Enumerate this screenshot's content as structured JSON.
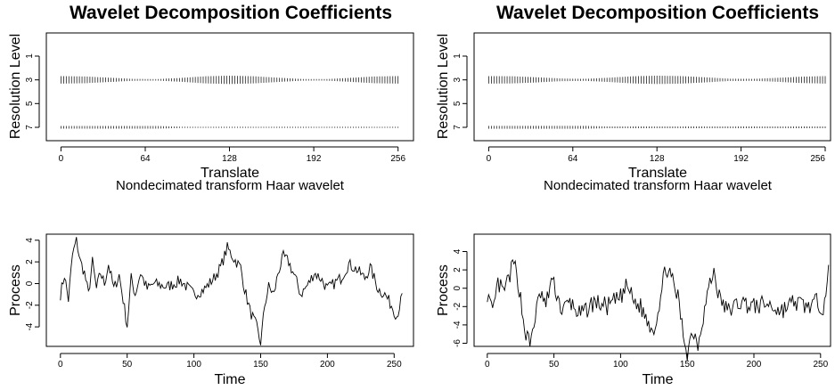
{
  "chart_data": [
    {
      "type": "wavelet-coefficients",
      "title": "Wavelet Decomposition Coefficients",
      "xlabel": "Translate",
      "ylabel": "Resolution Level",
      "subtitle": "Nondecimated transform Haar wavelet",
      "xticks": [
        "0",
        "64",
        "128",
        "192",
        "256"
      ],
      "yticks": [
        "1",
        "3",
        "5",
        "7"
      ],
      "xlim": [
        0,
        256
      ],
      "ylim": [
        8,
        0
      ],
      "levels": [
        {
          "level": 3,
          "amplitude_profile": [
            0.85,
            0.75,
            0.45,
            0.15,
            0.1,
            0.4,
            0.8,
            0.95,
            0.8,
            0.45,
            0.12,
            0.1,
            0.4,
            0.75,
            0.85
          ]
        },
        {
          "level": 7,
          "amplitude_profile": [
            0.5,
            0.5,
            0.5,
            0.5,
            0.5,
            0.12,
            0.12,
            0.12,
            0.12,
            0.12,
            0.12,
            0.12,
            0.12,
            0.12,
            0.12
          ]
        }
      ]
    },
    {
      "type": "wavelet-coefficients",
      "title": "Wavelet Decomposition Coefficients",
      "xlabel": "Translate",
      "ylabel": "Resolution Level",
      "subtitle": "Nondecimated transform Haar wavelet",
      "xticks": [
        "0",
        "64",
        "128",
        "192",
        "256"
      ],
      "yticks": [
        "1",
        "3",
        "5",
        "7"
      ],
      "xlim": [
        0,
        256
      ],
      "ylim": [
        8,
        0
      ],
      "levels": [
        {
          "level": 3,
          "amplitude_profile": [
            0.85,
            0.8,
            0.55,
            0.25,
            0.15,
            0.45,
            0.8,
            0.95,
            0.85,
            0.55,
            0.2,
            0.15,
            0.4,
            0.7,
            0.85
          ]
        },
        {
          "level": 7,
          "amplitude_profile": [
            0.55,
            0.55,
            0.55,
            0.55,
            0.55,
            0.25,
            0.25,
            0.25,
            0.25,
            0.25,
            0.25,
            0.25,
            0.25,
            0.25,
            0.25
          ]
        }
      ]
    },
    {
      "type": "line",
      "xlabel": "Time",
      "ylabel": "Process",
      "xticks": [
        "0",
        "50",
        "100",
        "150",
        "200",
        "250"
      ],
      "yticks": [
        "-4",
        "-2",
        "0",
        "2",
        "4"
      ],
      "xlim": [
        0,
        256
      ],
      "ylim": [
        -5.8,
        4.4
      ],
      "anchors": [
        [
          0,
          -1.0
        ],
        [
          3,
          0.8
        ],
        [
          6,
          -1.5
        ],
        [
          9,
          2.6
        ],
        [
          12,
          4.0
        ],
        [
          15,
          2.0
        ],
        [
          18,
          1.0
        ],
        [
          21,
          -1.0
        ],
        [
          24,
          2.0
        ],
        [
          27,
          -0.5
        ],
        [
          30,
          1.0
        ],
        [
          33,
          0.0
        ],
        [
          36,
          1.8
        ],
        [
          40,
          -0.5
        ],
        [
          44,
          0.8
        ],
        [
          47,
          -1.5
        ],
        [
          50,
          -3.9
        ],
        [
          53,
          0.5
        ],
        [
          56,
          -1.0
        ],
        [
          60,
          1.0
        ],
        [
          65,
          -0.5
        ],
        [
          70,
          0.0
        ],
        [
          80,
          -0.3
        ],
        [
          90,
          0.3
        ],
        [
          100,
          -1.0
        ],
        [
          108,
          -0.5
        ],
        [
          115,
          0.5
        ],
        [
          120,
          1.5
        ],
        [
          125,
          3.3
        ],
        [
          130,
          2.3
        ],
        [
          135,
          1.5
        ],
        [
          138,
          -0.5
        ],
        [
          142,
          -2.5
        ],
        [
          147,
          -4.0
        ],
        [
          150,
          -5.6
        ],
        [
          153,
          -2.0
        ],
        [
          156,
          -0.3
        ],
        [
          160,
          -1.0
        ],
        [
          163,
          1.0
        ],
        [
          167,
          2.5
        ],
        [
          171,
          2.0
        ],
        [
          176,
          0.5
        ],
        [
          180,
          -1.0
        ],
        [
          186,
          0.0
        ],
        [
          190,
          1.0
        ],
        [
          195,
          0.5
        ],
        [
          200,
          -0.5
        ],
        [
          205,
          0.0
        ],
        [
          210,
          0.5
        ],
        [
          216,
          1.8
        ],
        [
          222,
          1.3
        ],
        [
          228,
          0.5
        ],
        [
          232,
          1.5
        ],
        [
          238,
          -0.5
        ],
        [
          243,
          -1.0
        ],
        [
          248,
          -2.0
        ],
        [
          252,
          -3.0
        ],
        [
          256,
          -1.2
        ]
      ],
      "noise": 0.55,
      "seed": 7
    },
    {
      "type": "line",
      "xlabel": "Time",
      "ylabel": "Process",
      "xticks": [
        "0",
        "50",
        "100",
        "150",
        "200",
        "250"
      ],
      "yticks": [
        "-6",
        "-4",
        "-2",
        "0",
        "2",
        "4"
      ],
      "xlim": [
        0,
        256
      ],
      "ylim": [
        -6.3,
        5.8
      ],
      "anchors": [
        [
          0,
          1.5
        ],
        [
          4,
          -1.0
        ],
        [
          8,
          2.5
        ],
        [
          12,
          1.5
        ],
        [
          16,
          3.0
        ],
        [
          20,
          4.8
        ],
        [
          24,
          2.0
        ],
        [
          28,
          -2.5
        ],
        [
          32,
          -4.2
        ],
        [
          36,
          -1.0
        ],
        [
          40,
          1.5
        ],
        [
          44,
          0.0
        ],
        [
          48,
          3.0
        ],
        [
          52,
          1.5
        ],
        [
          56,
          -0.5
        ],
        [
          62,
          0.5
        ],
        [
          70,
          -1.0
        ],
        [
          80,
          0.5
        ],
        [
          90,
          0.0
        ],
        [
          100,
          1.0
        ],
        [
          105,
          2.3
        ],
        [
          110,
          0.5
        ],
        [
          115,
          0.0
        ],
        [
          120,
          -1.5
        ],
        [
          125,
          -2.5
        ],
        [
          130,
          1.0
        ],
        [
          134,
          4.5
        ],
        [
          138,
          3.0
        ],
        [
          143,
          1.0
        ],
        [
          147,
          -3.0
        ],
        [
          150,
          -5.0
        ],
        [
          154,
          -2.5
        ],
        [
          158,
          -4.0
        ],
        [
          162,
          -1.0
        ],
        [
          166,
          2.0
        ],
        [
          170,
          3.8
        ],
        [
          174,
          1.0
        ],
        [
          180,
          -0.5
        ],
        [
          190,
          0.5
        ],
        [
          200,
          0.0
        ],
        [
          210,
          0.3
        ],
        [
          220,
          -0.5
        ],
        [
          230,
          0.5
        ],
        [
          240,
          0.0
        ],
        [
          248,
          0.5
        ],
        [
          252,
          0.0
        ],
        [
          256,
          3.8
        ]
      ],
      "noise": 1.0,
      "seed": 13
    }
  ]
}
